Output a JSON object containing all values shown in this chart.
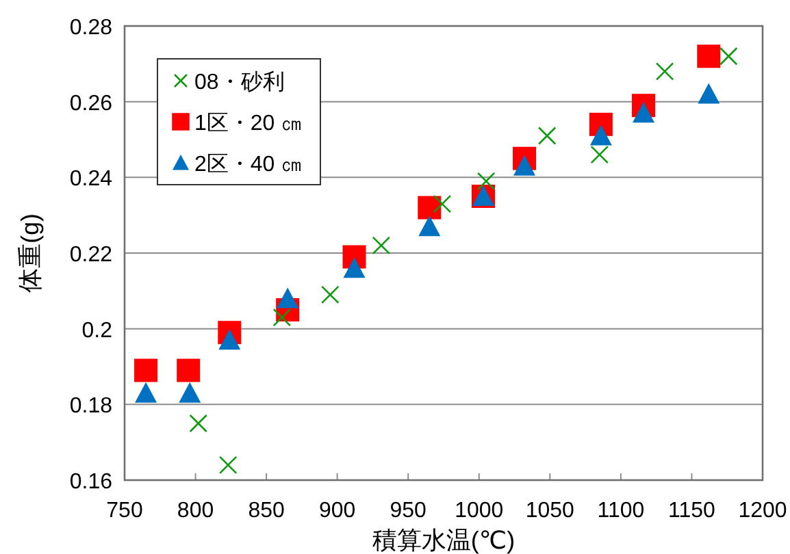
{
  "chart_data": {
    "type": "scatter",
    "xlabel": "積算水温(℃)",
    "ylabel": "体重(g)",
    "xlim": [
      750,
      1200
    ],
    "xticks": [
      750,
      800,
      850,
      900,
      950,
      1000,
      1050,
      1100,
      1150,
      1200
    ],
    "ylim": [
      0.16,
      0.28
    ],
    "yticks": [
      0.16,
      0.18,
      0.2,
      0.22,
      0.24,
      0.26,
      0.28
    ],
    "grid": "y",
    "legend": "top left",
    "series": [
      {
        "name": "08・砂利",
        "color": "#119911",
        "marker": "cross",
        "x": [
          802,
          823,
          861,
          895,
          931,
          974,
          1005,
          1048,
          1085,
          1131,
          1176
        ],
        "values": [
          0.175,
          0.164,
          0.203,
          0.209,
          0.222,
          0.233,
          0.239,
          0.251,
          0.246,
          0.268,
          0.272
        ]
      },
      {
        "name": "1区・20 ㎝",
        "color": "#ff0000",
        "marker": "square",
        "x": [
          765,
          795,
          824,
          865,
          912,
          965,
          1003,
          1032,
          1086,
          1116,
          1162
        ],
        "values": [
          0.189,
          0.189,
          0.199,
          0.205,
          0.219,
          0.232,
          0.235,
          0.245,
          0.254,
          0.259,
          0.272
        ]
      },
      {
        "name": "2区・40 ㎝",
        "color": "#0070c0",
        "marker": "triangle",
        "x": [
          765,
          796,
          824,
          865,
          912,
          965,
          1003,
          1032,
          1086,
          1116,
          1162
        ],
        "values": [
          0.183,
          0.183,
          0.197,
          0.208,
          0.216,
          0.227,
          0.235,
          0.243,
          0.251,
          0.257,
          0.262
        ]
      }
    ]
  }
}
